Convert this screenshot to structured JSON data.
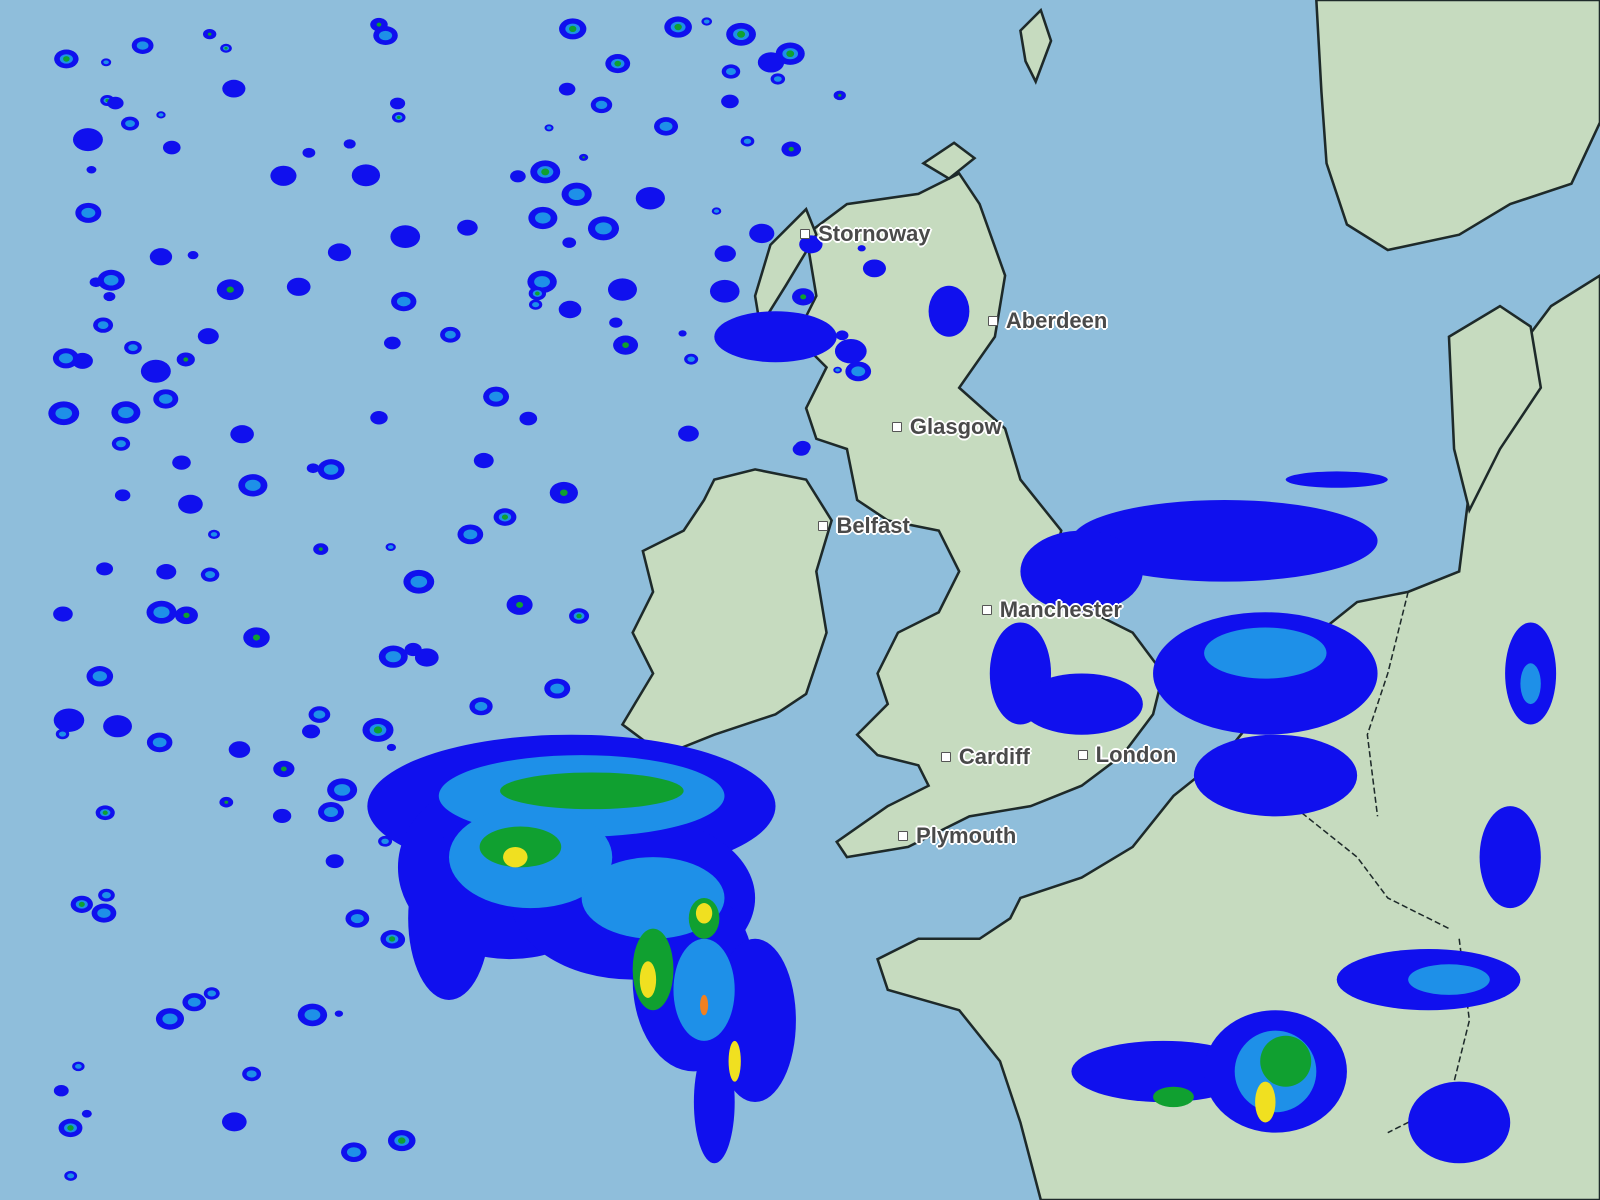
{
  "map": {
    "type": "precipitation radar",
    "colors": {
      "sea": "#8fbedb",
      "land": "#c6dbbf",
      "border": "#1e2a2a",
      "rain_light": "#1010ee",
      "rain_moderate": "#1e90e8",
      "rain_heavy": "#10a030",
      "rain_very_heavy": "#f0e020",
      "rain_extreme": "#f08020"
    },
    "cities": [
      {
        "name": "Stornoway"
      },
      {
        "name": "Aberdeen"
      },
      {
        "name": "Glasgow"
      },
      {
        "name": "Belfast"
      },
      {
        "name": "Manchester"
      },
      {
        "name": "Cardiff"
      },
      {
        "name": "London"
      },
      {
        "name": "Plymouth"
      }
    ]
  }
}
